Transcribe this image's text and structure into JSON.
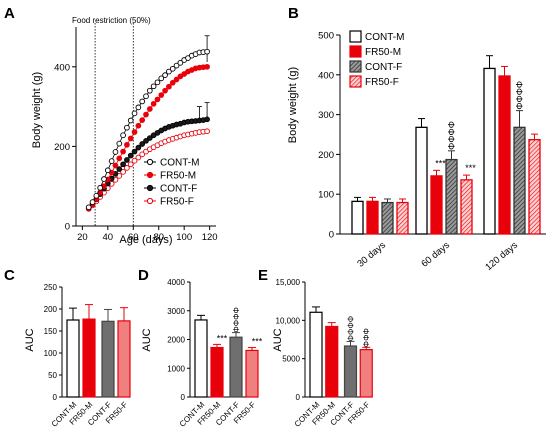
{
  "colors": {
    "male": "#e8000b",
    "female_light": "#f08080",
    "female_dark": "#6f6f6f",
    "axis": "#000000",
    "bg": "#ffffff"
  },
  "panels": {
    "A": {
      "label": "A",
      "annotation": "Food restriction (50%)"
    },
    "B": {
      "label": "B"
    },
    "C": {
      "label": "C"
    },
    "D": {
      "label": "D"
    },
    "E": {
      "label": "E"
    }
  },
  "chart_data": [
    {
      "panel": "A",
      "type": "line",
      "xlabel": "Age (days)",
      "ylabel": "Body weight (g)",
      "xlim": [
        15,
        125
      ],
      "ylim": [
        0,
        500
      ],
      "xticks": [
        "20",
        "40",
        "60",
        "80",
        "100",
        "120"
      ],
      "yticks": [
        "0",
        "200",
        "400"
      ],
      "x": [
        25,
        28,
        31,
        34,
        37,
        40,
        43,
        46,
        49,
        52,
        55,
        58,
        61,
        64,
        67,
        70,
        73,
        76,
        79,
        82,
        85,
        88,
        91,
        94,
        97,
        100,
        103,
        106,
        109,
        112,
        115,
        118
      ],
      "series": [
        {
          "name": "CONT-M",
          "marker": "open-circle",
          "values": [
            47,
            60,
            76,
            96,
            118,
            140,
            163,
            186,
            207,
            228,
            247,
            265,
            283,
            298,
            313,
            326,
            340,
            351,
            361,
            371,
            379,
            388,
            395,
            403,
            410,
            417,
            422,
            428,
            432,
            436,
            437,
            438
          ],
          "err_top": [
            437,
            478
          ],
          "err_bot": [
            433,
            412
          ]
        },
        {
          "name": "FR50-M",
          "marker": "filled-circle",
          "values": [
            45,
            55,
            68,
            84,
            100,
            117,
            134,
            152,
            170,
            187,
            204,
            220,
            236,
            252,
            266,
            280,
            294,
            307,
            318,
            329,
            340,
            350,
            360,
            368,
            376,
            382,
            388,
            392,
            396,
            398,
            399,
            400
          ]
        },
        {
          "name": "CONT-F",
          "marker": "filled-circle-dark",
          "values": [
            45,
            55,
            67,
            80,
            94,
            107,
            119,
            131,
            143,
            155,
            166,
            177,
            187,
            197,
            206,
            214,
            221,
            228,
            234,
            240,
            245,
            249,
            252,
            255,
            257,
            260,
            262,
            263,
            264,
            265,
            266,
            268
          ],
          "err_top": [
            300,
            310
          ]
        },
        {
          "name": "FR50-F",
          "marker": "open-circle-light",
          "values": [
            43,
            52,
            62,
            73,
            84,
            95,
            106,
            116,
            126,
            136,
            146,
            155,
            164,
            172,
            180,
            187,
            193,
            198,
            203,
            208,
            212,
            216,
            219,
            222,
            225,
            228,
            230,
            232,
            234,
            236,
            237,
            238
          ]
        }
      ],
      "legend": {
        "placement": "bottom-right",
        "entries": [
          "CONT-M",
          "FR50-M",
          "CONT-F",
          "FR50-F"
        ]
      },
      "vlines": [
        30,
        60
      ]
    },
    {
      "panel": "B",
      "type": "bar",
      "ylabel": "Body weight (g)",
      "ylim": [
        0,
        500
      ],
      "yticks": [
        "0",
        "100",
        "200",
        "300",
        "400",
        "500"
      ],
      "categories": [
        "30 days",
        "60 days",
        "120 days"
      ],
      "series": [
        {
          "name": "CONT-M",
          "values": [
            82,
            268,
            416
          ],
          "errors": [
            10,
            22,
            32
          ]
        },
        {
          "name": "FR50-M",
          "values": [
            82,
            146,
            397
          ],
          "errors": [
            10,
            14,
            24
          ]
        },
        {
          "name": "CONT-F",
          "values": [
            79,
            187,
            268
          ],
          "errors": [
            9,
            22,
            42
          ]
        },
        {
          "name": "FR50-F",
          "values": [
            79,
            136,
            237
          ],
          "errors": [
            9,
            12,
            14
          ]
        }
      ],
      "annotations": [
        {
          "category": "60 days",
          "series": "FR50-M",
          "text": "***"
        },
        {
          "category": "60 days",
          "series": "CONT-F",
          "text": "ΦΦΦΦ"
        },
        {
          "category": "60 days",
          "series": "FR50-F",
          "text": "***"
        },
        {
          "category": "120 days",
          "series": "CONT-F",
          "text": "ΦΦΦΦ"
        }
      ],
      "legend": {
        "placement": "top-left",
        "entries": [
          "CONT-M",
          "FR50-M",
          "CONT-F",
          "FR50-F"
        ]
      }
    },
    {
      "panel": "C",
      "type": "bar",
      "ylabel": "AUC",
      "ylim": [
        0,
        250
      ],
      "yticks": [
        "0",
        "50",
        "100",
        "150",
        "200",
        "250"
      ],
      "categories": [
        "CONT-M",
        "FR50-M",
        "CONT-F",
        "FR50-F"
      ],
      "values": [
        175,
        177,
        172,
        173
      ],
      "errors": [
        27,
        33,
        27,
        30
      ],
      "annotations": []
    },
    {
      "panel": "D",
      "type": "bar",
      "ylabel": "AUC",
      "ylim": [
        0,
        4000
      ],
      "yticks": [
        "0",
        "1000",
        "2000",
        "3000",
        "4000"
      ],
      "categories": [
        "CONT-M",
        "FR50-M",
        "CONT-F",
        "FR50-F"
      ],
      "values": [
        2680,
        1720,
        2080,
        1620
      ],
      "errors": [
        160,
        110,
        160,
        100
      ],
      "annotations": [
        {
          "category": "FR50-M",
          "text": "***"
        },
        {
          "category": "CONT-F",
          "text": "ΦΦΦΦ"
        },
        {
          "category": "FR50-F",
          "text": "***"
        }
      ]
    },
    {
      "panel": "E",
      "type": "bar",
      "ylabel": "AUC",
      "ylim": [
        0,
        15000
      ],
      "yticks": [
        "0",
        "5000",
        "10,000",
        "15,000"
      ],
      "categories": [
        "CONT-M",
        "FR50-M",
        "CONT-F",
        "FR50-F"
      ],
      "values": [
        11050,
        9200,
        6650,
        6180
      ],
      "errors": [
        700,
        500,
        600,
        300
      ],
      "annotations": [
        {
          "category": "CONT-F",
          "text": "ΦΦΦΦ"
        },
        {
          "category": "FR50-F",
          "text": "ΦΦΦ"
        }
      ]
    }
  ]
}
